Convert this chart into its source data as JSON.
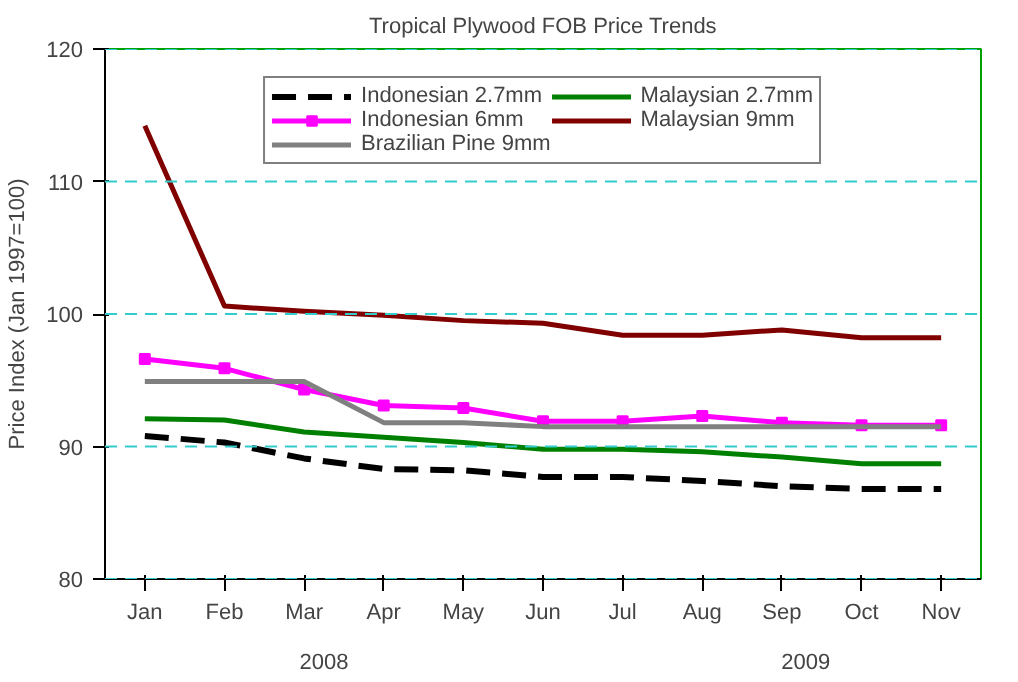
{
  "chart_data": {
    "type": "line",
    "title": "Tropical Plywood FOB Price Trends",
    "ylabel": "Price Index (Jan 1997=100)",
    "categories": [
      "Jan",
      "Feb",
      "Mar",
      "Apr",
      "May",
      "Jun",
      "Jul",
      "Aug",
      "Sep",
      "Oct",
      "Nov"
    ],
    "series": [
      {
        "name": "Indonesian 2.7mm",
        "color": "#000000",
        "line_style": "dashed",
        "values": [
          90.8,
          90.3,
          89.1,
          88.3,
          88.2,
          87.7,
          87.7,
          87.4,
          87.0,
          86.8,
          86.8
        ]
      },
      {
        "name": "Indonesian 6mm",
        "color": "#ff00ff",
        "marker": "square",
        "values": [
          96.6,
          95.9,
          94.3,
          93.1,
          92.9,
          91.9,
          91.9,
          92.3,
          91.8,
          91.6,
          91.6
        ]
      },
      {
        "name": "Brazilian Pine 9mm",
        "color": "#808080",
        "values": [
          94.9,
          94.9,
          94.9,
          91.8,
          91.8,
          91.5,
          91.5,
          91.5,
          91.5,
          91.5,
          91.5
        ]
      },
      {
        "name": "Malaysian 2.7mm",
        "color": "#008000",
        "values": [
          92.1,
          92.0,
          91.1,
          90.7,
          90.3,
          89.8,
          89.8,
          89.6,
          89.2,
          88.7,
          88.7
        ]
      },
      {
        "name": "Malaysian 9mm",
        "color": "#800000",
        "values": [
          114.2,
          100.6,
          100.2,
          99.9,
          99.5,
          99.3,
          98.4,
          98.4,
          98.8,
          98.2,
          98.2
        ]
      }
    ],
    "ylim": [
      80,
      120
    ],
    "yticks": [
      80,
      90,
      100,
      110,
      120
    ],
    "grid": "y",
    "legend": "top",
    "annotations": [
      "2008",
      "2009"
    ]
  }
}
